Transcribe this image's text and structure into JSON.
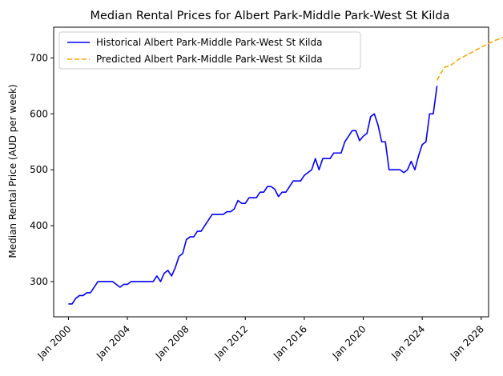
{
  "chart_data": {
    "type": "line",
    "title": "Median Rental Prices for Albert Park-Middle Park-West St Kilda",
    "xlabel": "",
    "ylabel": "Median Rental Price (AUD per week)",
    "ylim": [
      237,
      755
    ],
    "xlim": [
      1999.0,
      2028.5
    ],
    "yticks": [
      300,
      400,
      500,
      600,
      700
    ],
    "xticks": [
      {
        "value": 2000,
        "label": "Jan 2000"
      },
      {
        "value": 2004,
        "label": "Jan 2004"
      },
      {
        "value": 2008,
        "label": "Jan 2008"
      },
      {
        "value": 2012,
        "label": "Jan 2012"
      },
      {
        "value": 2016,
        "label": "Jan 2016"
      },
      {
        "value": 2020,
        "label": "Jan 2020"
      },
      {
        "value": 2024,
        "label": "Jan 2024"
      },
      {
        "value": 2028,
        "label": "Jan 2028"
      }
    ],
    "grid": false,
    "legend_position": "top-left",
    "series": [
      {
        "name": "Historical Albert Park-Middle Park-West St Kilda",
        "color": "#0000ff",
        "style": "solid",
        "points": [
          [
            2000.0,
            260
          ],
          [
            2000.25,
            260
          ],
          [
            2000.5,
            270
          ],
          [
            2000.75,
            275
          ],
          [
            2001.0,
            275
          ],
          [
            2001.25,
            280
          ],
          [
            2001.5,
            280
          ],
          [
            2001.75,
            290
          ],
          [
            2002.0,
            300
          ],
          [
            2002.5,
            300
          ],
          [
            2003.0,
            300
          ],
          [
            2003.25,
            295
          ],
          [
            2003.5,
            290
          ],
          [
            2003.75,
            295
          ],
          [
            2004.0,
            295
          ],
          [
            2004.25,
            300
          ],
          [
            2005.0,
            300
          ],
          [
            2005.5,
            300
          ],
          [
            2005.75,
            300
          ],
          [
            2006.0,
            310
          ],
          [
            2006.25,
            300
          ],
          [
            2006.5,
            315
          ],
          [
            2006.75,
            320
          ],
          [
            2007.0,
            310
          ],
          [
            2007.25,
            325
          ],
          [
            2007.5,
            345
          ],
          [
            2007.75,
            350
          ],
          [
            2008.0,
            375
          ],
          [
            2008.25,
            380
          ],
          [
            2008.5,
            380
          ],
          [
            2008.75,
            390
          ],
          [
            2009.0,
            390
          ],
          [
            2009.25,
            400
          ],
          [
            2009.5,
            410
          ],
          [
            2009.75,
            420
          ],
          [
            2010.0,
            420
          ],
          [
            2010.5,
            420
          ],
          [
            2010.75,
            425
          ],
          [
            2011.0,
            425
          ],
          [
            2011.25,
            430
          ],
          [
            2011.5,
            445
          ],
          [
            2011.75,
            440
          ],
          [
            2012.0,
            440
          ],
          [
            2012.25,
            450
          ],
          [
            2012.75,
            450
          ],
          [
            2013.0,
            460
          ],
          [
            2013.25,
            460
          ],
          [
            2013.5,
            470
          ],
          [
            2013.75,
            470
          ],
          [
            2014.0,
            465
          ],
          [
            2014.25,
            452
          ],
          [
            2014.5,
            460
          ],
          [
            2014.75,
            460
          ],
          [
            2015.0,
            470
          ],
          [
            2015.25,
            480
          ],
          [
            2015.75,
            480
          ],
          [
            2016.0,
            490
          ],
          [
            2016.5,
            500
          ],
          [
            2016.75,
            520
          ],
          [
            2017.0,
            500
          ],
          [
            2017.25,
            520
          ],
          [
            2017.75,
            520
          ],
          [
            2018.0,
            530
          ],
          [
            2018.5,
            530
          ],
          [
            2018.75,
            550
          ],
          [
            2019.0,
            560
          ],
          [
            2019.25,
            570
          ],
          [
            2019.5,
            570
          ],
          [
            2019.75,
            552
          ],
          [
            2020.0,
            560
          ],
          [
            2020.25,
            565
          ],
          [
            2020.5,
            595
          ],
          [
            2020.75,
            600
          ],
          [
            2021.0,
            580
          ],
          [
            2021.25,
            550
          ],
          [
            2021.5,
            550
          ],
          [
            2021.75,
            500
          ],
          [
            2022.0,
            500
          ],
          [
            2022.5,
            500
          ],
          [
            2022.75,
            495
          ],
          [
            2023.0,
            500
          ],
          [
            2023.25,
            515
          ],
          [
            2023.5,
            500
          ],
          [
            2023.75,
            525
          ],
          [
            2024.0,
            545
          ],
          [
            2024.25,
            550
          ],
          [
            2024.5,
            600
          ],
          [
            2024.75,
            600
          ],
          [
            2025.0,
            650
          ]
        ]
      },
      {
        "name": "Predicted Albert Park-Middle Park-West St Kilda",
        "color": "#ffa500",
        "style": "dashed",
        "points": [
          [
            2025.0,
            660
          ],
          [
            2025.25,
            672
          ],
          [
            2025.5,
            683
          ],
          [
            2026.0,
            688
          ],
          [
            2026.5,
            698
          ],
          [
            2027.0,
            705
          ],
          [
            2027.5,
            712
          ],
          [
            2028.0,
            719
          ],
          [
            2028.5,
            726
          ],
          [
            2029.0,
            732
          ],
          [
            2029.5,
            737
          ]
        ]
      }
    ]
  }
}
